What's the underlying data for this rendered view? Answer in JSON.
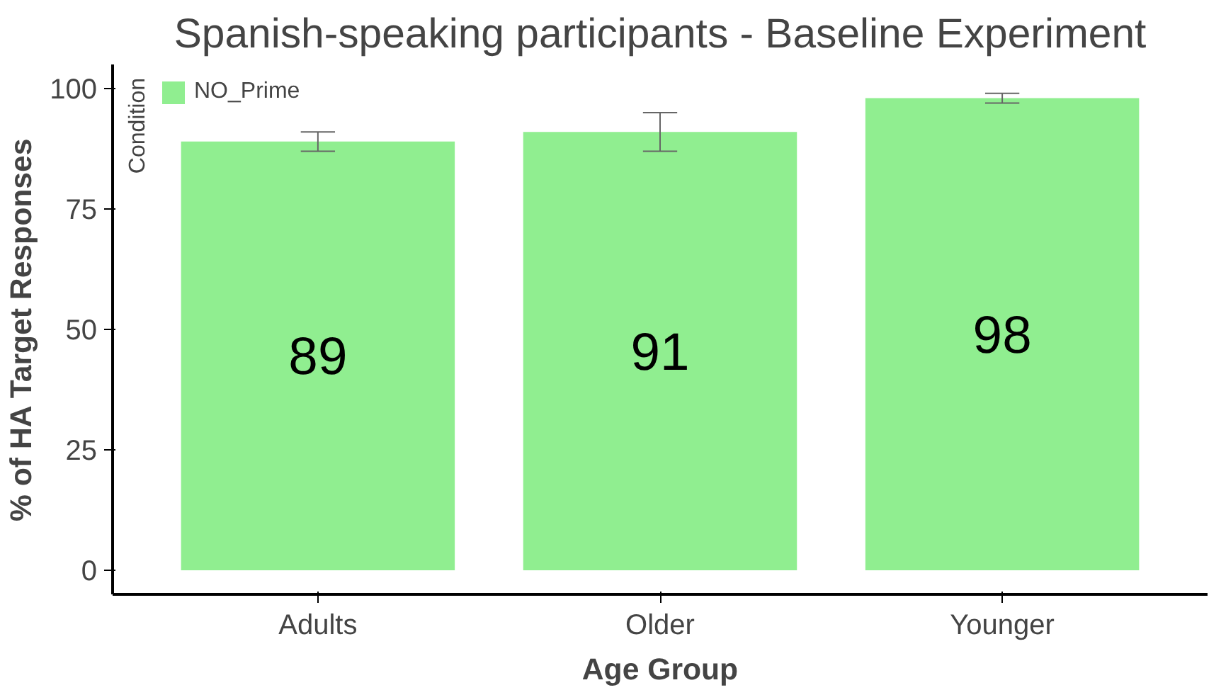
{
  "chart_data": {
    "type": "bar",
    "title": "Spanish-speaking participants - Baseline Experiment",
    "xlabel": "Age Group",
    "ylabel": "% of HA Target Responses",
    "categories": [
      "Adults",
      "Older",
      "Younger"
    ],
    "series": [
      {
        "name": "NO_Prime",
        "color": "#90ee90",
        "values": [
          89,
          91,
          98
        ],
        "errors": [
          [
            87,
            91
          ],
          [
            87,
            95
          ],
          [
            97,
            99
          ]
        ]
      }
    ],
    "legend_title": "Condition",
    "legend": "top left",
    "data_labels": true,
    "grid": false,
    "ylim": [
      -5,
      105
    ],
    "yticks": [
      0,
      25,
      50,
      75,
      100
    ]
  }
}
